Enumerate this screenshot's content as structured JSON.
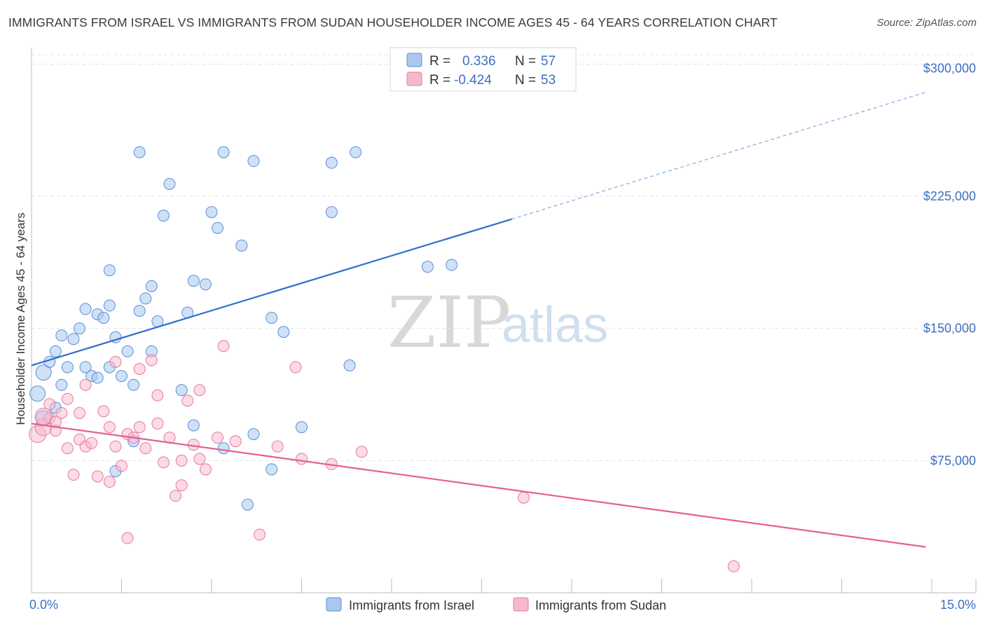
{
  "title": "IMMIGRANTS FROM ISRAEL VS IMMIGRANTS FROM SUDAN HOUSEHOLDER INCOME AGES 45 - 64 YEARS CORRELATION CHART",
  "source": "Source: ZipAtlas.com",
  "watermark": {
    "zip": "ZIP",
    "atlas": "atlas"
  },
  "colors": {
    "israel_fill": "#a9c8ef",
    "israel_stroke": "#5b8fd6",
    "israel_line": "#2f6fcb",
    "sudan_fill": "#f7b8cc",
    "sudan_stroke": "#e8799c",
    "sudan_line": "#e4608f",
    "axis_text": "#3d6fc4"
  },
  "legend_top": {
    "rows": [
      {
        "r_label": "R =",
        "r_value": "0.336",
        "n_label": "N =",
        "n_value": "57"
      },
      {
        "r_label": "R =",
        "r_value": "-0.424",
        "n_label": "N =",
        "n_value": "53"
      }
    ]
  },
  "legend_bottom": {
    "israel": "Immigrants from Israel",
    "sudan": "Immigrants from Sudan"
  },
  "chart_data": {
    "type": "scatter",
    "title": "IMMIGRANTS FROM ISRAEL VS IMMIGRANTS FROM SUDAN HOUSEHOLDER INCOME AGES 45 - 64 YEARS CORRELATION CHART",
    "xlabel": "",
    "ylabel": "Householder Income Ages 45 - 64 years",
    "xlim": [
      0,
      15
    ],
    "ylim": [
      0,
      312500
    ],
    "x_tick_labels": {
      "min": "0.0%",
      "max": "15.0%"
    },
    "y_ticks": [
      {
        "value": 75000,
        "label": "$75,000"
      },
      {
        "value": 150000,
        "label": "$150,000"
      },
      {
        "value": 225000,
        "label": "$225,000"
      },
      {
        "value": 300000,
        "label": "$300,000"
      }
    ],
    "series": [
      {
        "name": "Immigrants from Israel",
        "R": 0.336,
        "N": 57,
        "trend": {
          "x_start": 0.0,
          "y_start": 129000,
          "x_solid_end": 8.0,
          "y_solid_end": 212000,
          "x_dash_end": 14.9,
          "y_dash_end": 284000
        },
        "points": [
          [
            0.1,
            113000
          ],
          [
            0.2,
            125000
          ],
          [
            0.3,
            131000
          ],
          [
            0.4,
            105000
          ],
          [
            0.4,
            137000
          ],
          [
            0.5,
            146000
          ],
          [
            0.5,
            118000
          ],
          [
            0.6,
            128000
          ],
          [
            0.7,
            144000
          ],
          [
            0.8,
            150000
          ],
          [
            0.9,
            161000
          ],
          [
            0.9,
            128000
          ],
          [
            1.0,
            123000
          ],
          [
            1.1,
            158000
          ],
          [
            1.1,
            122000
          ],
          [
            1.2,
            156000
          ],
          [
            1.3,
            163000
          ],
          [
            1.3,
            183000
          ],
          [
            1.3,
            128000
          ],
          [
            1.4,
            69000
          ],
          [
            1.4,
            145000
          ],
          [
            1.5,
            123000
          ],
          [
            1.6,
            137000
          ],
          [
            1.7,
            118000
          ],
          [
            1.7,
            86000
          ],
          [
            1.8,
            250000
          ],
          [
            1.8,
            160000
          ],
          [
            1.9,
            167000
          ],
          [
            2.0,
            174000
          ],
          [
            2.0,
            137000
          ],
          [
            2.1,
            154000
          ],
          [
            2.2,
            214000
          ],
          [
            2.3,
            232000
          ],
          [
            2.5,
            115000
          ],
          [
            2.6,
            159000
          ],
          [
            2.7,
            95000
          ],
          [
            2.7,
            177000
          ],
          [
            2.9,
            175000
          ],
          [
            3.0,
            216000
          ],
          [
            3.1,
            207000
          ],
          [
            3.2,
            82000
          ],
          [
            3.2,
            250000
          ],
          [
            3.5,
            197000
          ],
          [
            3.6,
            50000
          ],
          [
            3.7,
            245000
          ],
          [
            3.7,
            90000
          ],
          [
            4.0,
            156000
          ],
          [
            4.0,
            70000
          ],
          [
            4.2,
            148000
          ],
          [
            4.5,
            94000
          ],
          [
            5.0,
            244000
          ],
          [
            5.0,
            216000
          ],
          [
            5.3,
            129000
          ],
          [
            5.4,
            250000
          ],
          [
            6.6,
            185000
          ],
          [
            7.0,
            186000
          ],
          [
            0.2,
            99000
          ]
        ]
      },
      {
        "name": "Immigrants from Sudan",
        "R": -0.424,
        "N": 53,
        "trend": {
          "x_start": 0.0,
          "y_start": 96000,
          "x_end": 14.9,
          "y_end": 26000
        },
        "points": [
          [
            0.1,
            90000
          ],
          [
            0.2,
            94000
          ],
          [
            0.3,
            107000
          ],
          [
            0.3,
            99000
          ],
          [
            0.4,
            92000
          ],
          [
            0.5,
            102000
          ],
          [
            0.6,
            82000
          ],
          [
            0.6,
            110000
          ],
          [
            0.7,
            67000
          ],
          [
            0.8,
            87000
          ],
          [
            0.8,
            102000
          ],
          [
            0.9,
            118000
          ],
          [
            0.9,
            83000
          ],
          [
            1.0,
            85000
          ],
          [
            1.1,
            66000
          ],
          [
            1.2,
            103000
          ],
          [
            1.3,
            63000
          ],
          [
            1.3,
            94000
          ],
          [
            1.4,
            131000
          ],
          [
            1.4,
            83000
          ],
          [
            1.5,
            72000
          ],
          [
            1.6,
            31000
          ],
          [
            1.6,
            90000
          ],
          [
            1.7,
            88000
          ],
          [
            1.8,
            94000
          ],
          [
            1.8,
            127000
          ],
          [
            1.9,
            82000
          ],
          [
            2.0,
            132000
          ],
          [
            2.1,
            96000
          ],
          [
            2.1,
            112000
          ],
          [
            2.2,
            74000
          ],
          [
            2.3,
            88000
          ],
          [
            2.4,
            55000
          ],
          [
            2.5,
            75000
          ],
          [
            2.5,
            61000
          ],
          [
            2.6,
            109000
          ],
          [
            2.7,
            84000
          ],
          [
            2.8,
            76000
          ],
          [
            2.8,
            115000
          ],
          [
            2.9,
            70000
          ],
          [
            3.1,
            88000
          ],
          [
            3.2,
            140000
          ],
          [
            3.4,
            86000
          ],
          [
            3.8,
            33000
          ],
          [
            4.1,
            83000
          ],
          [
            4.4,
            128000
          ],
          [
            4.5,
            76000
          ],
          [
            5.0,
            73000
          ],
          [
            5.5,
            80000
          ],
          [
            8.2,
            54000
          ],
          [
            11.7,
            15000
          ],
          [
            0.2,
            100000
          ],
          [
            0.4,
            97000
          ]
        ]
      }
    ]
  }
}
